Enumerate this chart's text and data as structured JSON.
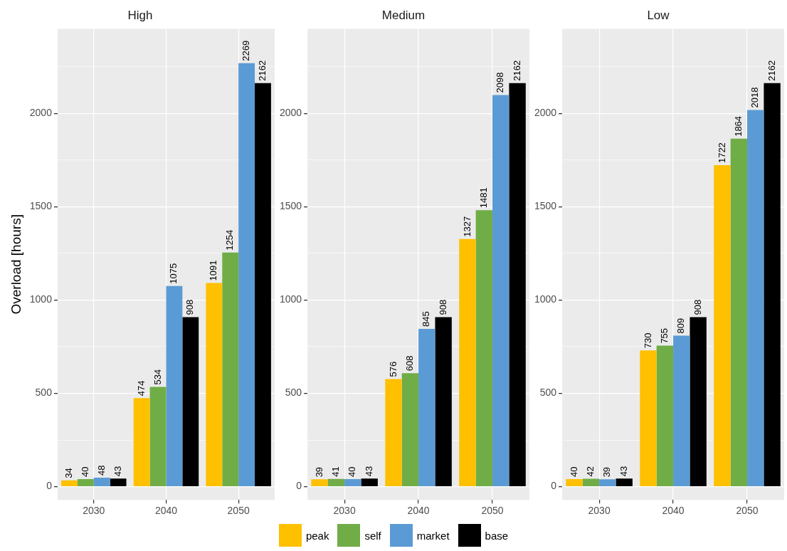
{
  "chart_data": [
    {
      "type": "bar",
      "title": "High",
      "ylabel": "Overload [hours]",
      "categories": [
        "2030",
        "2040",
        "2050"
      ],
      "series": [
        {
          "name": "peak",
          "color": "#ffc000",
          "values": [
            34,
            474,
            1091
          ]
        },
        {
          "name": "self",
          "color": "#70ad47",
          "values": [
            40,
            534,
            1254
          ]
        },
        {
          "name": "market",
          "color": "#5b9bd5",
          "values": [
            48,
            1075,
            2269
          ]
        },
        {
          "name": "base",
          "color": "#000000",
          "values": [
            43,
            908,
            2162
          ]
        }
      ],
      "ylim": [
        -71,
        2453
      ],
      "yticks": [
        0,
        {
          "value": 250,
          "label": null
        },
        500,
        {
          "value": 750,
          "label": null
        },
        1000,
        {
          "value": 1250,
          "label": null
        },
        1500,
        {
          "value": 1750,
          "label": null
        },
        2000,
        {
          "value": 2250,
          "label": null
        }
      ],
      "grid": true,
      "data_labels": true,
      "legend": "bottom"
    },
    {
      "type": "bar",
      "title": "Medium",
      "categories": [
        "2030",
        "2040",
        "2050"
      ],
      "series": [
        {
          "color": "#ffc000",
          "values": [
            39,
            576,
            1327
          ]
        },
        {
          "color": "#70ad47",
          "values": [
            41,
            608,
            1481
          ]
        },
        {
          "color": "#5b9bd5",
          "values": [
            40,
            845,
            2098
          ]
        },
        {
          "color": "#000000",
          "values": [
            43,
            908,
            2162
          ]
        }
      ],
      "ylim": [
        -71,
        2453
      ],
      "yticks": [
        0,
        {
          "value": 250,
          "label": null
        },
        500,
        {
          "value": 750,
          "label": null
        },
        1000,
        {
          "value": 1250,
          "label": null
        },
        1500,
        {
          "value": 1750,
          "label": null
        },
        2000,
        {
          "value": 2250,
          "label": null
        }
      ],
      "grid": true,
      "data_labels": true
    },
    {
      "type": "bar",
      "title": "Low",
      "categories": [
        "2030",
        "2040",
        "2050"
      ],
      "series": [
        {
          "color": "#ffc000",
          "values": [
            40,
            730,
            1722
          ]
        },
        {
          "color": "#70ad47",
          "values": [
            42,
            755,
            1864
          ]
        },
        {
          "color": "#5b9bd5",
          "values": [
            39,
            809,
            2018
          ]
        },
        {
          "color": "#000000",
          "values": [
            43,
            908,
            2162
          ]
        }
      ],
      "ylim": [
        -71,
        2453
      ],
      "yticks": [
        0,
        {
          "value": 250,
          "label": null
        },
        500,
        {
          "value": 750,
          "label": null
        },
        1000,
        {
          "value": 1250,
          "label": null
        },
        1500,
        {
          "value": 1750,
          "label": null
        },
        2000,
        {
          "value": 2250,
          "label": null
        }
      ],
      "grid": true,
      "data_labels": true
    }
  ]
}
